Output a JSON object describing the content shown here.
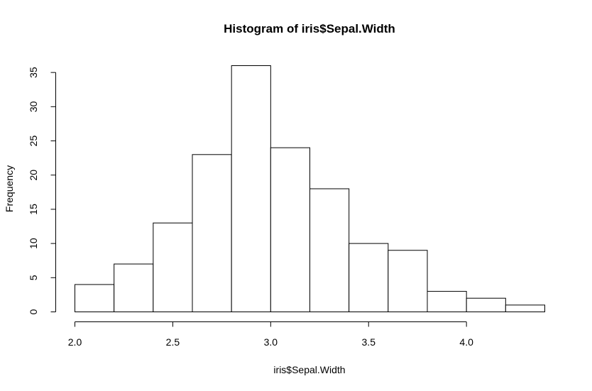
{
  "chart_data": {
    "type": "bar",
    "title": "Histogram of iris$Sepal.Width",
    "xlabel": "iris$Sepal.Width",
    "ylabel": "Frequency",
    "bins": [
      {
        "start": 2.0,
        "end": 2.2,
        "count": 4
      },
      {
        "start": 2.2,
        "end": 2.4,
        "count": 7
      },
      {
        "start": 2.4,
        "end": 2.6,
        "count": 13
      },
      {
        "start": 2.6,
        "end": 2.8,
        "count": 23
      },
      {
        "start": 2.8,
        "end": 3.0,
        "count": 36
      },
      {
        "start": 3.0,
        "end": 3.2,
        "count": 24
      },
      {
        "start": 3.2,
        "end": 3.4,
        "count": 18
      },
      {
        "start": 3.4,
        "end": 3.6,
        "count": 10
      },
      {
        "start": 3.6,
        "end": 3.8,
        "count": 9
      },
      {
        "start": 3.8,
        "end": 4.0,
        "count": 3
      },
      {
        "start": 4.0,
        "end": 4.2,
        "count": 2
      },
      {
        "start": 4.2,
        "end": 4.4,
        "count": 1
      }
    ],
    "xlim": [
      2.0,
      4.4
    ],
    "ylim": [
      0,
      36
    ],
    "x_ticks": [
      2.0,
      2.5,
      3.0,
      3.5,
      4.0
    ],
    "x_tick_labels": [
      "2.0",
      "2.5",
      "3.0",
      "3.5",
      "4.0"
    ],
    "y_ticks": [
      0,
      5,
      10,
      15,
      20,
      25,
      30,
      35
    ],
    "y_tick_labels": [
      "0",
      "5",
      "10",
      "15",
      "20",
      "25",
      "30",
      "35"
    ],
    "grid": false,
    "bar_fill": "#ffffff",
    "bar_stroke": "#000000"
  }
}
